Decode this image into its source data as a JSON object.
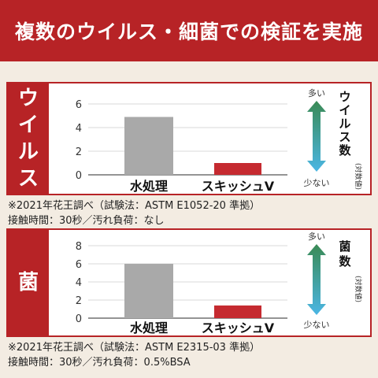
{
  "header": {
    "title": "複数のウイルス・細菌での検証を実施"
  },
  "colors": {
    "brand_red": "#b72326",
    "bar_water": "#a9a9a9",
    "bar_product": "#c52a30",
    "arrow_up": "#3a8a55",
    "arrow_down": "#4bb6e4"
  },
  "panels": [
    {
      "side_label": [
        "ウ",
        "イ",
        "ル",
        "ス"
      ],
      "arrow_top": "多い",
      "arrow_bottom": "少ない",
      "axis_title": [
        "ウ",
        "イ",
        "ル",
        "ス",
        "数"
      ],
      "axis_note": "(対数値)",
      "notes": [
        "※2021年花王調べ（試験法：ASTM E1052-20 準拠）",
        "接触時間：30秒／汚れ負荷：なし"
      ]
    },
    {
      "side_label": [
        "菌"
      ],
      "arrow_top": "多い",
      "arrow_bottom": "少ない",
      "axis_title": [
        "菌",
        "数"
      ],
      "axis_note": "(対数値)",
      "notes": [
        "※2021年花王調べ（試験法：ASTM E2315-03 準拠）",
        "接触時間：30秒／汚れ負荷：0.5%BSA"
      ]
    }
  ],
  "chart_data": [
    {
      "type": "bar",
      "categories": [
        "水処理",
        "スキッシュV"
      ],
      "values": [
        4.9,
        1.0
      ],
      "ylim": [
        0,
        6
      ],
      "yticks": [
        "0",
        "2",
        "4",
        "6"
      ],
      "ylabel": "ウイルス数(対数値)",
      "grid": true
    },
    {
      "type": "bar",
      "categories": [
        "水処理",
        "スキッシュV"
      ],
      "values": [
        6.0,
        1.4
      ],
      "ylim": [
        0,
        8
      ],
      "yticks": [
        "0",
        "2",
        "4",
        "6",
        "8"
      ],
      "ylabel": "菌数(対数値)",
      "grid": true
    }
  ]
}
